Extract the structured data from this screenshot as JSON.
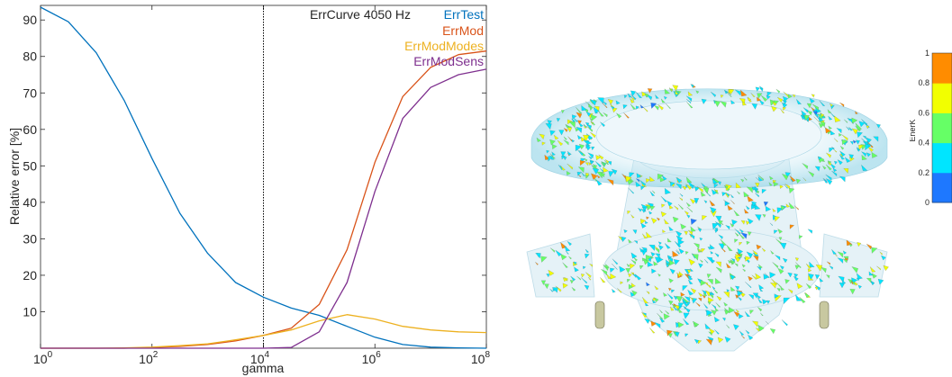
{
  "chart_data": {
    "type": "line",
    "title": "ErrCurve 4050 Hz",
    "xlabel": "gamma",
    "ylabel": "Relative error [%]",
    "x_scale": "log",
    "xlim": [
      1,
      100000000
    ],
    "ylim": [
      0,
      94
    ],
    "x_ticks": [
      {
        "label_base": "10",
        "label_exp": "0",
        "value": 1
      },
      {
        "label_base": "10",
        "label_exp": "2",
        "value": 100
      },
      {
        "label_base": "10",
        "label_exp": "4",
        "value": 10000
      },
      {
        "label_base": "10",
        "label_exp": "6",
        "value": 1000000
      },
      {
        "label_base": "10",
        "label_exp": "8",
        "value": 100000000
      }
    ],
    "y_ticks": [
      "10",
      "20",
      "30",
      "40",
      "50",
      "60",
      "70",
      "80",
      "90"
    ],
    "vertical_marker_x": 10000,
    "legend_position": "top-right",
    "x": [
      1,
      3.162,
      10,
      31.62,
      100,
      316.2,
      1000,
      3162,
      10000,
      31623,
      100000,
      316228,
      1000000,
      3162278,
      10000000,
      31622777,
      100000000
    ],
    "series": [
      {
        "name": "ErrTest",
        "color": "#0072BD",
        "values": [
          93.5,
          89.5,
          81,
          68,
          52,
          37,
          26,
          18,
          14,
          11,
          9,
          6,
          3,
          1,
          0.3,
          0.1,
          0
        ]
      },
      {
        "name": "ErrMod",
        "color": "#D95319",
        "values": [
          0,
          0,
          0,
          0,
          0.2,
          0.5,
          1,
          2,
          3.5,
          5.5,
          12,
          27,
          51,
          69,
          77,
          80.5,
          81.5
        ]
      },
      {
        "name": "ErrModModes",
        "color": "#EDB120",
        "values": [
          0,
          0,
          0,
          0.1,
          0.3,
          0.7,
          1.2,
          2.3,
          3.5,
          5,
          7.5,
          9.2,
          8,
          6,
          5,
          4.5,
          4.3
        ]
      },
      {
        "name": "ErrModSens",
        "color": "#7E2F8E",
        "values": [
          0,
          0,
          0,
          0,
          0,
          0,
          0,
          0,
          0,
          0.2,
          4.5,
          18,
          43,
          63,
          71.5,
          75,
          76.5
        ]
      }
    ]
  },
  "colorbar": {
    "label": "EnerK",
    "ticks": [
      "1",
      "0.8",
      "0.6",
      "0.4",
      "0.2",
      "0"
    ],
    "colors": [
      "#1E78FF",
      "#00E5FF",
      "#66FF66",
      "#F2FF00",
      "#FF8C00"
    ]
  }
}
